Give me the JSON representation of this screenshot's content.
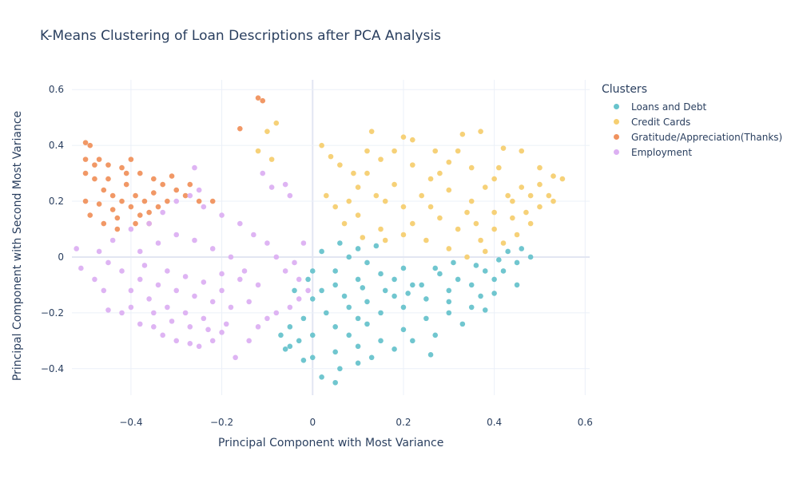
{
  "chart_data": {
    "type": "scatter",
    "title": "K-Means Clustering of Loan Descriptions after PCA Analysis",
    "xlabel": "Principal Component with Most Variance",
    "ylabel": "Principal Component with Second Most Variance",
    "xlim": [
      -0.53,
      0.61
    ],
    "ylim": [
      -0.495,
      0.635
    ],
    "xticks": [
      -0.4,
      -0.2,
      0,
      0.2,
      0.4,
      0.6
    ],
    "xtick_labels": [
      "−0.4",
      "−0.2",
      "0",
      "0.2",
      "0.4",
      "0.6"
    ],
    "yticks": [
      -0.4,
      -0.2,
      0,
      0.2,
      0.4,
      0.6
    ],
    "ytick_labels": [
      "−0.4",
      "−0.2",
      "0",
      "0.2",
      "0.4",
      "0.6"
    ],
    "grid": true,
    "legend": {
      "title": "Clusters",
      "placement": "right"
    },
    "series": [
      {
        "name": "Loans and Debt",
        "color": "#68C3CC",
        "points": [
          [
            0.05,
            -0.45
          ],
          [
            0.02,
            -0.43
          ],
          [
            -0.02,
            -0.37
          ],
          [
            0.06,
            -0.4
          ],
          [
            0.1,
            -0.38
          ],
          [
            -0.05,
            -0.32
          ],
          [
            0.0,
            -0.28
          ],
          [
            0.05,
            -0.25
          ],
          [
            0.1,
            -0.22
          ],
          [
            0.15,
            -0.2
          ],
          [
            0.2,
            -0.18
          ],
          [
            0.25,
            -0.15
          ],
          [
            0.3,
            -0.12
          ],
          [
            0.35,
            -0.1
          ],
          [
            0.4,
            -0.08
          ],
          [
            0.45,
            -0.02
          ],
          [
            0.43,
            0.02
          ],
          [
            0.38,
            -0.05
          ],
          [
            0.32,
            -0.08
          ],
          [
            0.28,
            -0.06
          ],
          [
            0.22,
            -0.1
          ],
          [
            0.18,
            -0.14
          ],
          [
            0.12,
            -0.16
          ],
          [
            0.08,
            -0.18
          ],
          [
            0.03,
            -0.2
          ],
          [
            -0.02,
            -0.22
          ],
          [
            -0.05,
            -0.25
          ],
          [
            -0.07,
            -0.28
          ],
          [
            0.0,
            -0.15
          ],
          [
            0.05,
            -0.1
          ],
          [
            0.1,
            -0.08
          ],
          [
            0.15,
            -0.06
          ],
          [
            0.2,
            -0.04
          ],
          [
            0.05,
            -0.05
          ],
          [
            0.0,
            -0.05
          ],
          [
            0.02,
            0.02
          ],
          [
            0.08,
            0.0
          ],
          [
            0.12,
            -0.02
          ],
          [
            0.18,
            -0.08
          ],
          [
            0.24,
            -0.1
          ],
          [
            0.3,
            -0.16
          ],
          [
            0.35,
            -0.18
          ],
          [
            0.25,
            -0.22
          ],
          [
            0.2,
            -0.26
          ],
          [
            0.15,
            -0.3
          ],
          [
            0.1,
            -0.32
          ],
          [
            0.05,
            -0.34
          ],
          [
            0.0,
            -0.36
          ],
          [
            0.27,
            -0.28
          ],
          [
            0.3,
            -0.2
          ],
          [
            0.4,
            -0.13
          ],
          [
            0.45,
            -0.1
          ],
          [
            0.48,
            0.0
          ],
          [
            0.42,
            -0.05
          ],
          [
            0.37,
            -0.14
          ],
          [
            0.33,
            -0.24
          ],
          [
            0.38,
            -0.19
          ],
          [
            0.06,
            0.05
          ],
          [
            0.1,
            0.03
          ],
          [
            0.14,
            0.04
          ],
          [
            -0.04,
            -0.12
          ],
          [
            -0.03,
            -0.3
          ],
          [
            -0.06,
            -0.33
          ],
          [
            0.13,
            -0.36
          ],
          [
            0.18,
            -0.33
          ],
          [
            0.22,
            -0.3
          ],
          [
            0.26,
            -0.35
          ],
          [
            0.08,
            -0.28
          ],
          [
            0.12,
            -0.24
          ],
          [
            0.16,
            -0.12
          ],
          [
            0.02,
            -0.12
          ],
          [
            -0.01,
            -0.08
          ],
          [
            0.07,
            -0.14
          ],
          [
            0.11,
            -0.11
          ],
          [
            0.21,
            -0.13
          ],
          [
            0.27,
            -0.04
          ],
          [
            0.31,
            -0.02
          ],
          [
            0.36,
            -0.03
          ],
          [
            0.41,
            -0.01
          ],
          [
            0.46,
            0.03
          ]
        ]
      },
      {
        "name": "Credit Cards",
        "color": "#F6CF71",
        "points": [
          [
            0.13,
            0.45
          ],
          [
            0.2,
            0.43
          ],
          [
            0.27,
            0.38
          ],
          [
            0.33,
            0.44
          ],
          [
            0.37,
            0.45
          ],
          [
            0.42,
            0.39
          ],
          [
            0.46,
            0.38
          ],
          [
            0.5,
            0.32
          ],
          [
            0.53,
            0.29
          ],
          [
            0.55,
            0.28
          ],
          [
            0.52,
            0.22
          ],
          [
            0.5,
            0.18
          ],
          [
            0.48,
            0.12
          ],
          [
            0.45,
            0.08
          ],
          [
            0.42,
            0.05
          ],
          [
            0.38,
            0.02
          ],
          [
            0.34,
            0.0
          ],
          [
            0.3,
            0.03
          ],
          [
            0.25,
            0.06
          ],
          [
            0.2,
            0.08
          ],
          [
            0.15,
            0.1
          ],
          [
            0.1,
            0.15
          ],
          [
            0.08,
            0.2
          ],
          [
            0.1,
            0.25
          ],
          [
            0.12,
            0.3
          ],
          [
            0.15,
            0.35
          ],
          [
            0.18,
            0.38
          ],
          [
            0.22,
            0.33
          ],
          [
            0.26,
            0.28
          ],
          [
            0.3,
            0.24
          ],
          [
            0.35,
            0.2
          ],
          [
            0.4,
            0.16
          ],
          [
            0.44,
            0.2
          ],
          [
            0.46,
            0.25
          ],
          [
            0.4,
            0.28
          ],
          [
            0.35,
            0.32
          ],
          [
            0.3,
            0.34
          ],
          [
            0.24,
            0.22
          ],
          [
            0.2,
            0.18
          ],
          [
            0.16,
            0.2
          ],
          [
            0.28,
            0.14
          ],
          [
            0.32,
            0.1
          ],
          [
            0.36,
            0.12
          ],
          [
            0.4,
            0.1
          ],
          [
            0.44,
            0.14
          ],
          [
            0.48,
            0.22
          ],
          [
            0.02,
            0.4
          ],
          [
            0.04,
            0.36
          ],
          [
            0.06,
            0.33
          ],
          [
            0.03,
            0.22
          ],
          [
            0.05,
            0.18
          ],
          [
            -0.09,
            0.35
          ],
          [
            -0.08,
            0.48
          ],
          [
            -0.1,
            0.45
          ],
          [
            -0.12,
            0.38
          ],
          [
            0.22,
            0.42
          ],
          [
            0.32,
            0.38
          ],
          [
            0.41,
            0.32
          ],
          [
            0.38,
            0.25
          ],
          [
            0.28,
            0.3
          ],
          [
            0.18,
            0.26
          ],
          [
            0.14,
            0.22
          ],
          [
            0.22,
            0.12
          ],
          [
            0.26,
            0.18
          ],
          [
            0.34,
            0.16
          ],
          [
            0.5,
            0.26
          ],
          [
            0.53,
            0.2
          ],
          [
            0.47,
            0.16
          ],
          [
            0.43,
            0.22
          ],
          [
            0.37,
            0.06
          ],
          [
            0.11,
            0.07
          ],
          [
            0.16,
            0.06
          ],
          [
            0.07,
            0.12
          ],
          [
            0.09,
            0.3
          ],
          [
            0.12,
            0.38
          ]
        ]
      },
      {
        "name": "Gratitude/Appreciation(Thanks)",
        "color": "#F0925E",
        "points": [
          [
            -0.12,
            0.57
          ],
          [
            -0.11,
            0.56
          ],
          [
            -0.16,
            0.46
          ],
          [
            -0.5,
            0.41
          ],
          [
            -0.49,
            0.4
          ],
          [
            -0.5,
            0.35
          ],
          [
            -0.47,
            0.35
          ],
          [
            -0.45,
            0.33
          ],
          [
            -0.42,
            0.32
          ],
          [
            -0.4,
            0.35
          ],
          [
            -0.38,
            0.3
          ],
          [
            -0.35,
            0.28
          ],
          [
            -0.33,
            0.26
          ],
          [
            -0.3,
            0.24
          ],
          [
            -0.28,
            0.22
          ],
          [
            -0.25,
            0.2
          ],
          [
            -0.22,
            0.2
          ],
          [
            -0.48,
            0.28
          ],
          [
            -0.46,
            0.24
          ],
          [
            -0.44,
            0.22
          ],
          [
            -0.42,
            0.2
          ],
          [
            -0.4,
            0.18
          ],
          [
            -0.38,
            0.15
          ],
          [
            -0.36,
            0.12
          ],
          [
            -0.43,
            0.1
          ],
          [
            -0.46,
            0.12
          ],
          [
            -0.49,
            0.15
          ],
          [
            -0.5,
            0.2
          ],
          [
            -0.45,
            0.28
          ],
          [
            -0.41,
            0.26
          ],
          [
            -0.39,
            0.22
          ],
          [
            -0.37,
            0.2
          ],
          [
            -0.34,
            0.18
          ],
          [
            -0.32,
            0.2
          ],
          [
            -0.35,
            0.23
          ],
          [
            -0.44,
            0.17
          ],
          [
            -0.47,
            0.19
          ],
          [
            -0.43,
            0.14
          ],
          [
            -0.39,
            0.12
          ],
          [
            -0.36,
            0.16
          ],
          [
            -0.31,
            0.29
          ],
          [
            -0.27,
            0.26
          ],
          [
            -0.5,
            0.3
          ],
          [
            -0.48,
            0.33
          ],
          [
            -0.41,
            0.3
          ]
        ]
      },
      {
        "name": "Employment",
        "color": "#DCB0F2",
        "points": [
          [
            -0.52,
            0.03
          ],
          [
            -0.51,
            -0.04
          ],
          [
            -0.48,
            -0.08
          ],
          [
            -0.46,
            -0.12
          ],
          [
            -0.45,
            -0.19
          ],
          [
            -0.42,
            -0.2
          ],
          [
            -0.4,
            -0.18
          ],
          [
            -0.38,
            -0.24
          ],
          [
            -0.35,
            -0.25
          ],
          [
            -0.33,
            -0.28
          ],
          [
            -0.3,
            -0.3
          ],
          [
            -0.27,
            -0.31
          ],
          [
            -0.25,
            -0.32
          ],
          [
            -0.22,
            -0.3
          ],
          [
            -0.2,
            -0.27
          ],
          [
            -0.17,
            -0.36
          ],
          [
            -0.14,
            -0.3
          ],
          [
            -0.12,
            -0.25
          ],
          [
            -0.1,
            -0.22
          ],
          [
            -0.08,
            -0.2
          ],
          [
            -0.05,
            -0.18
          ],
          [
            -0.03,
            -0.15
          ],
          [
            -0.01,
            -0.12
          ],
          [
            -0.03,
            -0.08
          ],
          [
            -0.06,
            -0.05
          ],
          [
            -0.08,
            0.0
          ],
          [
            -0.1,
            0.05
          ],
          [
            -0.13,
            0.08
          ],
          [
            -0.16,
            0.12
          ],
          [
            -0.2,
            0.15
          ],
          [
            -0.24,
            0.18
          ],
          [
            -0.27,
            0.22
          ],
          [
            -0.3,
            0.2
          ],
          [
            -0.33,
            0.16
          ],
          [
            -0.36,
            0.12
          ],
          [
            -0.4,
            0.1
          ],
          [
            -0.44,
            0.06
          ],
          [
            -0.47,
            0.02
          ],
          [
            -0.45,
            -0.02
          ],
          [
            -0.42,
            -0.05
          ],
          [
            -0.38,
            -0.08
          ],
          [
            -0.34,
            -0.1
          ],
          [
            -0.3,
            -0.12
          ],
          [
            -0.26,
            -0.14
          ],
          [
            -0.22,
            -0.16
          ],
          [
            -0.18,
            -0.18
          ],
          [
            -0.14,
            -0.16
          ],
          [
            -0.12,
            -0.1
          ],
          [
            -0.15,
            -0.05
          ],
          [
            -0.18,
            0.0
          ],
          [
            -0.22,
            0.03
          ],
          [
            -0.26,
            0.06
          ],
          [
            -0.3,
            0.08
          ],
          [
            -0.34,
            0.05
          ],
          [
            -0.38,
            0.02
          ],
          [
            -0.4,
            -0.12
          ],
          [
            -0.36,
            -0.15
          ],
          [
            -0.32,
            -0.18
          ],
          [
            -0.28,
            -0.2
          ],
          [
            -0.24,
            -0.22
          ],
          [
            -0.2,
            -0.12
          ],
          [
            -0.16,
            -0.08
          ],
          [
            -0.26,
            0.32
          ],
          [
            -0.25,
            0.24
          ],
          [
            -0.05,
            0.22
          ],
          [
            -0.06,
            0.26
          ],
          [
            -0.11,
            0.3
          ],
          [
            -0.09,
            0.25
          ],
          [
            -0.02,
            0.05
          ],
          [
            -0.04,
            -0.02
          ],
          [
            -0.37,
            -0.03
          ],
          [
            -0.32,
            -0.05
          ],
          [
            -0.28,
            -0.07
          ],
          [
            -0.24,
            -0.09
          ],
          [
            -0.2,
            -0.06
          ],
          [
            -0.35,
            -0.2
          ],
          [
            -0.31,
            -0.23
          ],
          [
            -0.27,
            -0.25
          ],
          [
            -0.23,
            -0.26
          ],
          [
            -0.19,
            -0.24
          ]
        ]
      }
    ]
  }
}
